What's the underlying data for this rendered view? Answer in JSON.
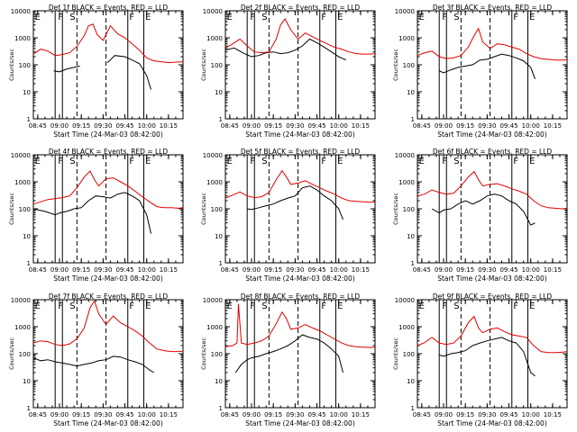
{
  "figure": {
    "colors": {
      "events": "#000000",
      "lld": "#e00000"
    },
    "x_axis_title": "Start Time (24-Mar-03 08:42:00)",
    "y_axis_title": "Counts/sec",
    "x_tick_labels": [
      "08:45",
      "09:00",
      "09:15",
      "09:30",
      "09:45",
      "10:00",
      "10:15"
    ],
    "y_tick_labels": [
      "1",
      "10",
      "100",
      "1000",
      "10000"
    ],
    "interval_markers": [
      "E",
      "F",
      "S",
      "F",
      "E"
    ]
  },
  "chart_data": [
    {
      "type": "line",
      "title": "Det 1f BLACK = Events, RED = LLD",
      "xlabel": "Start Time (24-Mar-03 08:42:00)",
      "ylabel": "Counts/sec",
      "yscale": "log",
      "ylim": [
        1,
        10000
      ],
      "xlim": [
        "08:42",
        "10:25"
      ],
      "series": [
        {
          "name": "Events",
          "color": "#000000",
          "x": [
            "08:56",
            "09:00",
            "09:05",
            "09:10",
            "09:14",
            "09:20",
            "09:27",
            "09:33",
            "09:38",
            "09:45",
            "09:50",
            "09:55",
            "10:00",
            "10:03"
          ],
          "y": [
            60,
            55,
            70,
            80,
            90,
            null,
            null,
            120,
            220,
            200,
            150,
            110,
            40,
            12
          ]
        },
        {
          "name": "LLD",
          "color": "#e00000",
          "x": [
            "08:42",
            "08:47",
            "08:52",
            "08:57",
            "09:02",
            "09:07",
            "09:12",
            "09:17",
            "09:20",
            "09:23",
            "09:26",
            "09:30",
            "09:35",
            "09:40",
            "09:45",
            "09:50",
            "09:55",
            "10:00",
            "10:05",
            "10:10",
            "10:15",
            "10:20",
            "10:25"
          ],
          "y": [
            250,
            380,
            320,
            220,
            240,
            280,
            480,
            1200,
            2800,
            3200,
            1300,
            800,
            2800,
            1400,
            1000,
            600,
            350,
            180,
            140,
            130,
            120,
            125,
            130
          ]
        }
      ]
    },
    {
      "type": "line",
      "title": "Det 2f BLACK = Events, RED = LLD",
      "xlabel": "Start Time (24-Mar-03 08:42:00)",
      "ylabel": "Counts/sec",
      "yscale": "log",
      "ylim": [
        1,
        10000
      ],
      "xlim": [
        "08:42",
        "10:25"
      ],
      "series": [
        {
          "name": "Events",
          "color": "#000000",
          "x": [
            "08:42",
            "08:48",
            "08:55",
            "09:00",
            "09:05",
            "09:10",
            "09:15",
            "09:20",
            "09:25",
            "09:30",
            "09:35",
            "09:40",
            "09:45",
            "09:50",
            "09:55",
            "10:00",
            "10:05"
          ],
          "y": [
            350,
            420,
            260,
            200,
            220,
            280,
            300,
            260,
            280,
            350,
            500,
            900,
            650,
            450,
            300,
            200,
            150
          ]
        },
        {
          "name": "LLD",
          "color": "#e00000",
          "x": [
            "08:42",
            "08:47",
            "08:52",
            "08:57",
            "09:02",
            "09:07",
            "09:12",
            "09:17",
            "09:20",
            "09:23",
            "09:27",
            "09:32",
            "09:37",
            "09:42",
            "09:47",
            "09:52",
            "09:57",
            "10:02",
            "10:07",
            "10:12",
            "10:17",
            "10:22",
            "10:25"
          ],
          "y": [
            420,
            600,
            900,
            500,
            300,
            280,
            300,
            900,
            3000,
            5000,
            2000,
            900,
            1500,
            1100,
            800,
            600,
            450,
            380,
            300,
            260,
            250,
            250,
            260
          ]
        }
      ]
    },
    {
      "type": "line",
      "title": "Det 3f BLACK = Events, RED = LLD",
      "xlabel": "Start Time (24-Mar-03 08:42:00)",
      "ylabel": "Counts/sec",
      "yscale": "log",
      "ylim": [
        1,
        10000
      ],
      "xlim": [
        "08:42",
        "10:25"
      ],
      "series": [
        {
          "name": "Events",
          "color": "#000000",
          "x": [
            "08:57",
            "09:00",
            "09:05",
            "09:10",
            "09:15",
            "09:20",
            "09:25",
            "09:30",
            "09:35",
            "09:40",
            "09:45",
            "09:50",
            "09:55",
            "10:00",
            "10:03"
          ],
          "y": [
            60,
            50,
            65,
            80,
            90,
            100,
            150,
            160,
            200,
            250,
            220,
            180,
            140,
            80,
            30
          ]
        },
        {
          "name": "LLD",
          "color": "#e00000",
          "x": [
            "08:42",
            "08:47",
            "08:52",
            "08:57",
            "09:02",
            "09:07",
            "09:12",
            "09:17",
            "09:21",
            "09:24",
            "09:27",
            "09:32",
            "09:37",
            "09:42",
            "09:47",
            "09:52",
            "09:57",
            "10:02",
            "10:07",
            "10:12",
            "10:17",
            "10:22",
            "10:25"
          ],
          "y": [
            220,
            280,
            320,
            200,
            170,
            180,
            220,
            450,
            1200,
            2200,
            700,
            400,
            600,
            550,
            450,
            380,
            260,
            200,
            170,
            160,
            150,
            150,
            155
          ]
        }
      ]
    },
    {
      "type": "line",
      "title": "Det 4f BLACK = Events, RED = LLD",
      "xlabel": "Start Time (24-Mar-03 08:42:00)",
      "ylabel": "Counts/sec",
      "yscale": "log",
      "ylim": [
        1,
        10000
      ],
      "xlim": [
        "08:42",
        "10:25"
      ],
      "series": [
        {
          "name": "Events",
          "color": "#000000",
          "x": [
            "08:42",
            "08:50",
            "08:57",
            "09:00",
            "09:05",
            "09:10",
            "09:15",
            "09:20",
            "09:25",
            "09:30",
            "09:35",
            "09:40",
            "09:45",
            "09:50",
            "09:55",
            "10:00",
            "10:03"
          ],
          "y": [
            100,
            80,
            60,
            70,
            80,
            100,
            110,
            200,
            300,
            280,
            250,
            350,
            400,
            300,
            200,
            60,
            12
          ]
        },
        {
          "name": "LLD",
          "color": "#e00000",
          "x": [
            "08:42",
            "08:47",
            "08:52",
            "08:57",
            "09:02",
            "09:07",
            "09:12",
            "09:17",
            "09:21",
            "09:24",
            "09:27",
            "09:32",
            "09:37",
            "09:42",
            "09:47",
            "09:52",
            "09:57",
            "10:02",
            "10:07",
            "10:12",
            "10:17",
            "10:22",
            "10:25"
          ],
          "y": [
            150,
            180,
            220,
            240,
            260,
            300,
            600,
            1500,
            2500,
            1200,
            700,
            1300,
            1400,
            1000,
            700,
            450,
            280,
            180,
            120,
            110,
            110,
            105,
            110
          ]
        }
      ]
    },
    {
      "type": "line",
      "title": "Det 5f BLACK = Events, RED = LLD",
      "xlabel": "Start Time (24-Mar-03 08:42:00)",
      "ylabel": "Counts/sec",
      "yscale": "log",
      "ylim": [
        1,
        10000
      ],
      "xlim": [
        "08:42",
        "10:25"
      ],
      "series": [
        {
          "name": "Events",
          "color": "#000000",
          "x": [
            "08:57",
            "09:00",
            "09:05",
            "09:10",
            "09:15",
            "09:20",
            "09:25",
            "09:30",
            "09:35",
            "09:40",
            "09:45",
            "09:50",
            "09:55",
            "10:00",
            "10:03"
          ],
          "y": [
            100,
            95,
            110,
            130,
            150,
            200,
            250,
            300,
            600,
            700,
            500,
            300,
            200,
            100,
            40
          ]
        },
        {
          "name": "LLD",
          "color": "#e00000",
          "x": [
            "08:42",
            "08:47",
            "08:52",
            "08:57",
            "09:02",
            "09:07",
            "09:12",
            "09:17",
            "09:21",
            "09:24",
            "09:27",
            "09:32",
            "09:37",
            "09:42",
            "09:47",
            "09:52",
            "09:57",
            "10:02",
            "10:07",
            "10:12",
            "10:17",
            "10:22",
            "10:25"
          ],
          "y": [
            250,
            320,
            420,
            300,
            260,
            280,
            400,
            1200,
            2600,
            1500,
            800,
            900,
            1100,
            800,
            600,
            450,
            350,
            250,
            200,
            190,
            180,
            175,
            180
          ]
        }
      ]
    },
    {
      "type": "line",
      "title": "Det 6f BLACK = Events, RED = LLD",
      "xlabel": "Start Time (24-Mar-03 08:42:00)",
      "ylabel": "Counts/sec",
      "yscale": "log",
      "ylim": [
        1,
        10000
      ],
      "xlim": [
        "08:42",
        "10:25"
      ],
      "series": [
        {
          "name": "Events",
          "color": "#000000",
          "x": [
            "08:52",
            "08:57",
            "09:00",
            "09:05",
            "09:10",
            "09:15",
            "09:20",
            "09:25",
            "09:30",
            "09:35",
            "09:40",
            "09:45",
            "09:50",
            "09:55",
            "10:00",
            "10:03"
          ],
          "y": [
            100,
            70,
            90,
            100,
            150,
            200,
            150,
            200,
            300,
            350,
            300,
            200,
            150,
            80,
            25,
            30
          ]
        },
        {
          "name": "LLD",
          "color": "#e00000",
          "x": [
            "08:42",
            "08:47",
            "08:52",
            "08:57",
            "09:02",
            "09:07",
            "09:12",
            "09:17",
            "09:21",
            "09:24",
            "09:27",
            "09:32",
            "09:37",
            "09:42",
            "09:47",
            "09:52",
            "09:57",
            "10:02",
            "10:07",
            "10:12",
            "10:17",
            "10:22",
            "10:25"
          ],
          "y": [
            300,
            350,
            500,
            400,
            350,
            380,
            700,
            1500,
            2400,
            1200,
            700,
            800,
            850,
            700,
            550,
            450,
            350,
            200,
            130,
            110,
            105,
            100,
            105
          ]
        }
      ]
    },
    {
      "type": "line",
      "title": "Det 7f BLACK = Events, RED = LLD",
      "xlabel": "Start Time (24-Mar-03 08:42:00)",
      "ylabel": "Counts/sec",
      "yscale": "log",
      "ylim": [
        1,
        10000
      ],
      "xlim": [
        "08:42",
        "10:25"
      ],
      "series": [
        {
          "name": "Events",
          "color": "#000000",
          "x": [
            "08:42",
            "08:47",
            "08:52",
            "08:57",
            "09:02",
            "09:07",
            "09:12",
            "09:17",
            "09:22",
            "09:27",
            "09:32",
            "09:37",
            "09:42",
            "09:47",
            "09:52",
            "09:57",
            "10:02",
            "10:05"
          ],
          "y": [
            70,
            55,
            60,
            50,
            45,
            40,
            35,
            40,
            45,
            55,
            60,
            80,
            75,
            60,
            50,
            40,
            25,
            20
          ]
        },
        {
          "name": "LLD",
          "color": "#e00000",
          "x": [
            "08:42",
            "08:47",
            "08:52",
            "08:57",
            "09:02",
            "09:07",
            "09:12",
            "09:17",
            "09:21",
            "09:24",
            "09:27",
            "09:32",
            "09:37",
            "09:42",
            "09:47",
            "09:52",
            "09:57",
            "10:02",
            "10:07",
            "10:12",
            "10:17",
            "10:22",
            "10:25"
          ],
          "y": [
            250,
            300,
            280,
            220,
            200,
            230,
            350,
            900,
            5000,
            9000,
            3000,
            1200,
            2500,
            1400,
            1000,
            700,
            450,
            250,
            150,
            130,
            120,
            120,
            125
          ]
        }
      ]
    },
    {
      "type": "line",
      "title": "Det 8f BLACK = Events, RED = LLD",
      "xlabel": "Start Time (24-Mar-03 08:42:00)",
      "ylabel": "Counts/sec",
      "yscale": "log",
      "ylim": [
        1,
        10000
      ],
      "xlim": [
        "08:42",
        "10:25"
      ],
      "series": [
        {
          "name": "Events",
          "color": "#000000",
          "x": [
            "08:49",
            "08:53",
            "08:57",
            "09:00",
            "09:05",
            "09:10",
            "09:15",
            "09:20",
            "09:25",
            "09:30",
            "09:35",
            "09:40",
            "09:45",
            "09:50",
            "09:55",
            "10:00",
            "10:03"
          ],
          "y": [
            20,
            40,
            60,
            70,
            80,
            100,
            120,
            150,
            200,
            300,
            500,
            400,
            350,
            250,
            150,
            80,
            20
          ]
        },
        {
          "name": "LLD",
          "color": "#e00000",
          "x": [
            "08:42",
            "08:47",
            "08:50",
            "08:51",
            "08:53",
            "08:57",
            "09:02",
            "09:07",
            "09:12",
            "09:17",
            "09:21",
            "09:24",
            "09:27",
            "09:32",
            "09:37",
            "09:42",
            "09:47",
            "09:52",
            "09:57",
            "10:02",
            "10:07",
            "10:12",
            "10:17",
            "10:22",
            "10:25"
          ],
          "y": [
            180,
            200,
            250,
            7000,
            250,
            220,
            250,
            300,
            450,
            1300,
            3500,
            2000,
            800,
            900,
            1200,
            900,
            700,
            500,
            350,
            250,
            200,
            180,
            175,
            170,
            175
          ]
        }
      ]
    },
    {
      "type": "line",
      "title": "Det 9f BLACK = Events, RED = LLD",
      "xlabel": "Start Time (24-Mar-03 08:42:00)",
      "ylabel": "Counts/sec",
      "yscale": "log",
      "ylim": [
        1,
        10000
      ],
      "xlim": [
        "08:42",
        "10:25"
      ],
      "series": [
        {
          "name": "Events",
          "color": "#000000",
          "x": [
            "08:57",
            "09:00",
            "09:05",
            "09:10",
            "09:15",
            "09:20",
            "09:25",
            "09:30",
            "09:35",
            "09:40",
            "09:45",
            "09:50",
            "09:55",
            "10:00",
            "10:03"
          ],
          "y": [
            90,
            80,
            100,
            110,
            130,
            200,
            250,
            300,
            350,
            400,
            300,
            250,
            120,
            20,
            15
          ]
        },
        {
          "name": "LLD",
          "color": "#e00000",
          "x": [
            "08:42",
            "08:47",
            "08:52",
            "08:57",
            "09:02",
            "09:07",
            "09:12",
            "09:17",
            "09:21",
            "09:24",
            "09:27",
            "09:32",
            "09:37",
            "09:42",
            "09:47",
            "09:52",
            "09:57",
            "10:02",
            "10:07",
            "10:12",
            "10:17",
            "10:22",
            "10:25"
          ],
          "y": [
            200,
            260,
            400,
            250,
            220,
            250,
            450,
            1400,
            2400,
            900,
            600,
            800,
            900,
            650,
            500,
            450,
            400,
            200,
            120,
            110,
            110,
            115,
            120
          ]
        }
      ]
    }
  ]
}
